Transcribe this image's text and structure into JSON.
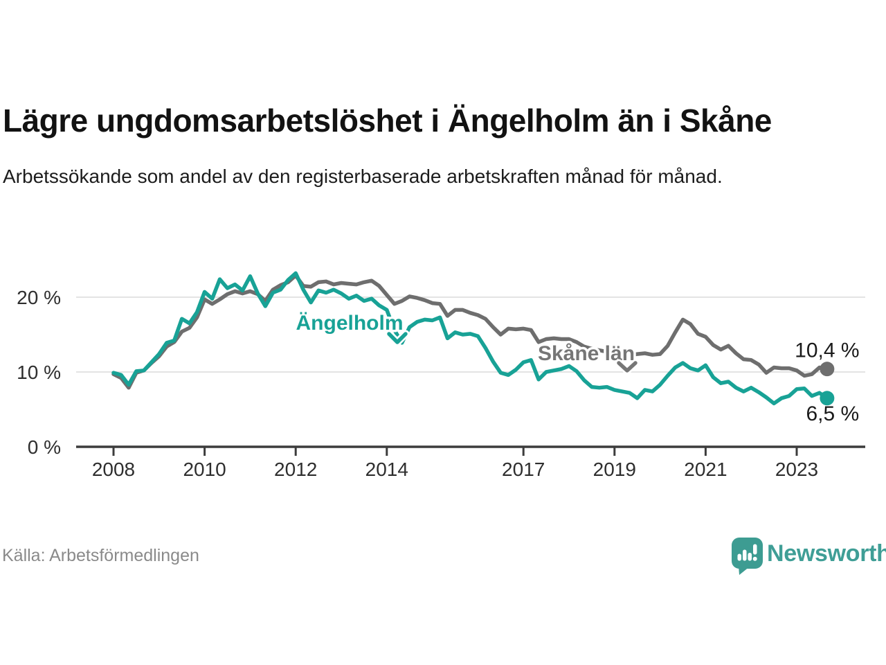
{
  "header": {
    "title": "Lägre ungdomsarbetslöshet i Ängelholm än i Skåne",
    "subtitle": "Arbetssökande som andel av den registerbaserade arbetskraften månad för månad."
  },
  "source": {
    "label": "Källa: Arbetsförmedlingen"
  },
  "branding": {
    "name": "Newsworthy",
    "color": "#3f9e96",
    "icon": "newsworthy-speech-bubble-bars-icon"
  },
  "chart_data": {
    "type": "line",
    "title": "Lägre ungdomsarbetslöshet i Ängelholm än i Skåne",
    "subtitle": "Arbetssökande som andel av den registerbaserade arbetskraften månad för månad.",
    "unit": "%",
    "grid": "horizontal-only",
    "legend_position": "inline-labels",
    "x_axis": {
      "ticks": [
        2008,
        2010,
        2012,
        2014,
        2017,
        2019,
        2021,
        2023
      ],
      "labels": [
        "2008",
        "2010",
        "2012",
        "2014",
        "2017",
        "2019",
        "2021",
        "2023"
      ],
      "range": [
        2007.2,
        2024.5
      ]
    },
    "y_axis": {
      "ticks": [
        0,
        10,
        20
      ],
      "labels": [
        "0 %",
        "10 %",
        "20 %"
      ],
      "range": [
        0,
        25
      ]
    },
    "x_start": 2008.0,
    "x_step": 0.166667,
    "series": [
      {
        "name": "Skåne län",
        "color": "#6e6e6e",
        "label_color": "#767676",
        "end_value": 10.4,
        "end_label": "10,4 %",
        "values": [
          9.7,
          9.2,
          7.9,
          9.9,
          10.2,
          11.2,
          12.1,
          13.4,
          14.0,
          15.4,
          15.9,
          17.3,
          19.7,
          19.1,
          19.7,
          20.4,
          20.8,
          20.5,
          20.8,
          20.4,
          19.5,
          21.0,
          21.6,
          22.0,
          22.9,
          21.5,
          21.4,
          22.0,
          22.1,
          21.7,
          21.9,
          21.8,
          21.7,
          22.0,
          22.2,
          21.5,
          20.3,
          19.1,
          19.5,
          20.1,
          19.9,
          19.6,
          19.2,
          19.1,
          17.5,
          18.3,
          18.3,
          17.9,
          17.6,
          17.1,
          16.0,
          15.0,
          15.8,
          15.7,
          15.8,
          15.6,
          14.0,
          14.4,
          14.5,
          14.4,
          14.4,
          14.0,
          13.4,
          13.1,
          12.9,
          12.7,
          12.5,
          12.3,
          12.2,
          12.4,
          12.5,
          12.3,
          12.4,
          13.5,
          15.3,
          17.0,
          16.4,
          15.1,
          14.7,
          13.6,
          13.0,
          13.5,
          12.5,
          11.7,
          11.6,
          11.0,
          9.9,
          10.6,
          10.5,
          10.5,
          10.2,
          9.5,
          9.7,
          10.6,
          10.4
        ]
      },
      {
        "name": "Ängelholm",
        "color": "#18a296",
        "label_color": "#18a296",
        "end_value": 6.5,
        "end_label": "6,5 %",
        "values": [
          9.9,
          9.6,
          8.3,
          10.1,
          10.2,
          11.3,
          12.4,
          13.9,
          14.2,
          17.1,
          16.5,
          18.0,
          20.7,
          19.8,
          22.4,
          21.2,
          21.7,
          20.9,
          22.8,
          20.5,
          18.8,
          20.6,
          21.0,
          22.3,
          23.2,
          21.0,
          19.3,
          20.9,
          20.6,
          21.0,
          20.5,
          19.8,
          20.2,
          19.5,
          19.8,
          18.9,
          18.3,
          15.6,
          13.9,
          16.0,
          16.7,
          17.0,
          16.9,
          17.3,
          14.5,
          15.3,
          15.0,
          15.1,
          14.8,
          13.2,
          11.4,
          9.9,
          9.6,
          10.3,
          11.3,
          11.6,
          9.0,
          10.0,
          10.2,
          10.4,
          10.8,
          10.1,
          8.9,
          8.0,
          7.9,
          8.0,
          7.6,
          7.4,
          7.2,
          6.5,
          7.6,
          7.4,
          8.3,
          9.5,
          10.6,
          11.2,
          10.5,
          10.2,
          10.9,
          9.3,
          8.5,
          8.7,
          7.9,
          7.4,
          7.9,
          7.3,
          6.6,
          5.8,
          6.5,
          6.8,
          7.7,
          7.8,
          6.8,
          7.2,
          6.5
        ]
      }
    ],
    "colors": {
      "grid": "#dadada",
      "axis": "#3c3c3c",
      "tick_label": "#2e2e2e",
      "end_label": "#1a1a1a"
    }
  }
}
